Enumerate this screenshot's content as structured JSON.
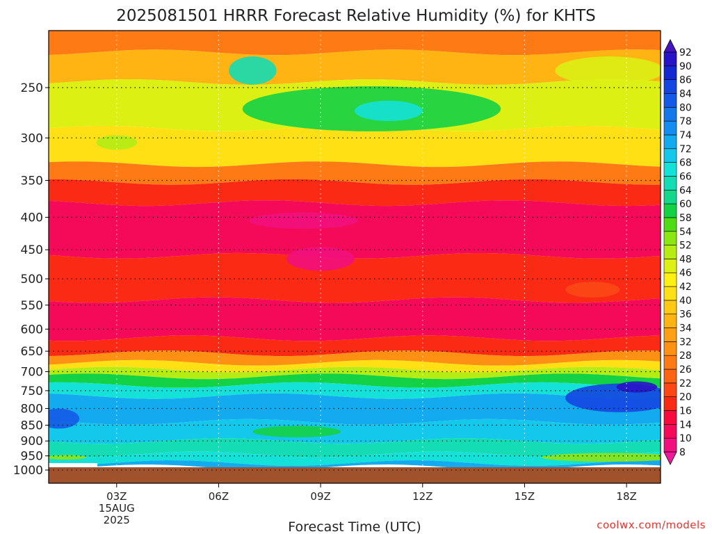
{
  "chart_data": {
    "type": "heatmap",
    "title": "2025081501 HRRR Forecast Relative Humidity (%) for KHTS",
    "xlabel": "Forecast Time (UTC)",
    "ylabel": "",
    "x_ticks": [
      {
        "hour": 3,
        "label": "03Z",
        "sublabels": [
          "15AUG",
          "2025"
        ]
      },
      {
        "hour": 6,
        "label": "06Z"
      },
      {
        "hour": 9,
        "label": "09Z"
      },
      {
        "hour": 12,
        "label": "12Z"
      },
      {
        "hour": 15,
        "label": "15Z"
      },
      {
        "hour": 18,
        "label": "18Z"
      }
    ],
    "xlim": [
      1,
      19
    ],
    "y_scale": "pressure",
    "y_ticks": [
      250,
      300,
      350,
      400,
      450,
      500,
      550,
      600,
      650,
      700,
      750,
      800,
      850,
      900,
      950,
      1000
    ],
    "grid": true,
    "ground_level_hpa": 990,
    "colorbar": {
      "levels": [
        8,
        10,
        14,
        16,
        20,
        22,
        26,
        28,
        32,
        34,
        36,
        40,
        42,
        46,
        48,
        52,
        54,
        58,
        60,
        64,
        66,
        68,
        72,
        74,
        78,
        80,
        84,
        86,
        90,
        92
      ],
      "colors": [
        "#f0189a",
        "#f2107c",
        "#f50a5a",
        "#f80a3c",
        "#fa2a14",
        "#fb4814",
        "#fc6414",
        "#fd7a14",
        "#fe9014",
        "#ffa014",
        "#ffb414",
        "#ffc814",
        "#ffe014",
        "#fff014",
        "#dcf014",
        "#b4ec14",
        "#8ce614",
        "#50dc14",
        "#14d246",
        "#14d78c",
        "#14dcb4",
        "#14e1d7",
        "#14c8eb",
        "#14aaf0",
        "#148cf0",
        "#1478eb",
        "#145ae6",
        "#1446e1",
        "#1428d2",
        "#2814c8",
        "#4614be"
      ]
    },
    "bands": [
      {
        "p_top": 160,
        "p_bot": 220,
        "rh": 26
      },
      {
        "p_top": 220,
        "p_bot": 245,
        "rh": 34
      },
      {
        "p_top": 245,
        "p_bot": 290,
        "rh": 46
      },
      {
        "p_top": 290,
        "p_bot": 330,
        "rh": 40
      },
      {
        "p_top": 330,
        "p_bot": 352,
        "rh": 26
      },
      {
        "p_top": 352,
        "p_bot": 380,
        "rh": 16
      },
      {
        "p_top": 380,
        "p_bot": 460,
        "rh": 10
      },
      {
        "p_top": 460,
        "p_bot": 540,
        "rh": 16
      },
      {
        "p_top": 540,
        "p_bot": 620,
        "rh": 10
      },
      {
        "p_top": 620,
        "p_bot": 655,
        "rh": 16
      },
      {
        "p_top": 655,
        "p_bot": 678,
        "rh": 28
      },
      {
        "p_top": 678,
        "p_bot": 695,
        "rh": 40
      },
      {
        "p_top": 695,
        "p_bot": 712,
        "rh": 48
      },
      {
        "p_top": 712,
        "p_bot": 735,
        "rh": 58
      },
      {
        "p_top": 735,
        "p_bot": 765,
        "rh": 66
      },
      {
        "p_top": 765,
        "p_bot": 840,
        "rh": 72
      },
      {
        "p_top": 840,
        "p_bot": 900,
        "rh": 68
      },
      {
        "p_top": 900,
        "p_bot": 945,
        "rh": 64
      },
      {
        "p_top": 945,
        "p_bot": 975,
        "rh": 66
      },
      {
        "p_top": 975,
        "p_bot": 990,
        "rh": 72
      }
    ],
    "features": [
      {
        "hour": 10.5,
        "p": 270,
        "rx_h": 3.8,
        "p_half": 22,
        "rh": 58
      },
      {
        "hour": 11.0,
        "p": 272,
        "rx_h": 1.0,
        "p_half": 10,
        "rh": 66
      },
      {
        "hour": 7.0,
        "p": 235,
        "rx_h": 0.7,
        "p_half": 12,
        "rh": 64
      },
      {
        "hour": 3.0,
        "p": 305,
        "rx_h": 0.6,
        "p_half": 8,
        "rh": 48
      },
      {
        "hour": 17.5,
        "p": 235,
        "rx_h": 1.6,
        "p_half": 12,
        "rh": 46
      },
      {
        "hour": 8.5,
        "p": 405,
        "rx_h": 1.6,
        "p_half": 12,
        "rh": 8
      },
      {
        "hour": 9.0,
        "p": 465,
        "rx_h": 1.0,
        "p_half": 20,
        "rh": 8
      },
      {
        "hour": 17.0,
        "p": 520,
        "rx_h": 0.8,
        "p_half": 15,
        "rh": 20
      },
      {
        "hour": 17.8,
        "p": 770,
        "rx_h": 1.6,
        "p_half": 40,
        "rh": 84
      },
      {
        "hour": 18.3,
        "p": 740,
        "rx_h": 0.6,
        "p_half": 15,
        "rh": 90
      },
      {
        "hour": 1.3,
        "p": 830,
        "rx_h": 0.6,
        "p_half": 30,
        "rh": 80
      },
      {
        "hour": 8.3,
        "p": 870,
        "rx_h": 1.3,
        "p_half": 18,
        "rh": 58
      },
      {
        "hour": 17.5,
        "p": 955,
        "rx_h": 2.0,
        "p_half": 15,
        "rh": 52
      },
      {
        "hour": 1.5,
        "p": 955,
        "rx_h": 0.6,
        "p_half": 8,
        "rh": 52
      }
    ],
    "credit": "coolwx.com/models"
  }
}
